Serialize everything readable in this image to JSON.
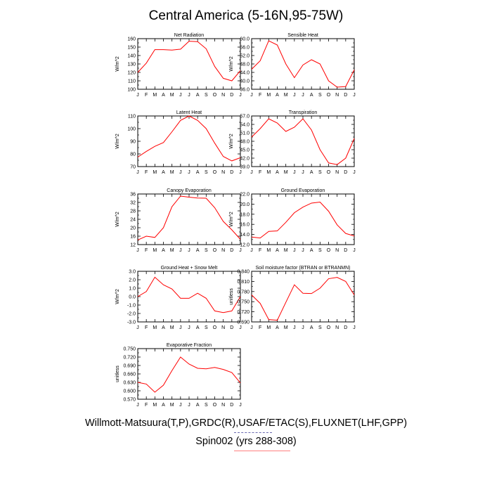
{
  "title": "Central America (5-16N,95-75W)",
  "footer": {
    "line1": "Willmott-Matsuura(T,P),GRDC(R),USAF/ETAC(S),FLUXNET(LHF,GPP)",
    "line2": "Spin002 (yrs 288-308)"
  },
  "colors": {
    "line": "#ff0000",
    "axis": "#000000",
    "deco_line": "#ff8080"
  },
  "months": [
    "J",
    "F",
    "M",
    "A",
    "M",
    "J",
    "J",
    "A",
    "S",
    "O",
    "N",
    "D",
    "J"
  ],
  "chart_data": [
    {
      "type": "line",
      "title": "Net Radiation",
      "ylabel": "W/m^2",
      "ylim": [
        100,
        160
      ],
      "yticks": [
        "160",
        "150",
        "140",
        "130",
        "120",
        "110",
        "100"
      ],
      "values": [
        120,
        131,
        147,
        147,
        146.5,
        147.5,
        157,
        156.5,
        148,
        127,
        113,
        110,
        122
      ]
    },
    {
      "type": "line",
      "title": "Sensible Heat",
      "ylabel": "W/m^2",
      "ylim": [
        36,
        60
      ],
      "yticks": [
        "60.0",
        "56.0",
        "52.0",
        "48.0",
        "44.0",
        "40.0",
        "36.0"
      ],
      "values": [
        45.5,
        49.5,
        59,
        57,
        48,
        41.5,
        47.5,
        50,
        48,
        40,
        37,
        37.3,
        45.2
      ]
    },
    {
      "type": "line",
      "title": "Latent Heat",
      "ylabel": "W/m^2",
      "ylim": [
        70,
        110
      ],
      "yticks": [
        "110",
        "100",
        "90",
        "80",
        "70"
      ],
      "values": [
        77.5,
        82,
        86,
        89,
        97.5,
        106.5,
        110,
        106.5,
        100,
        88.5,
        78,
        74.5,
        77
      ]
    },
    {
      "type": "line",
      "title": "Transpiration",
      "ylabel": "W/m^2",
      "ylim": [
        39,
        57
      ],
      "yticks": [
        "57.0",
        "54.0",
        "51.0",
        "48.0",
        "45.0",
        "42.0",
        "39.0"
      ],
      "values": [
        49.5,
        52.5,
        56,
        54.5,
        51.5,
        53,
        56,
        52,
        45,
        40.3,
        39.7,
        42,
        49
      ]
    },
    {
      "type": "line",
      "title": "Canopy Evaporation",
      "ylabel": "W/m^2",
      "ylim": [
        12,
        36
      ],
      "yticks": [
        "36",
        "32",
        "28",
        "24",
        "20",
        "16",
        "12"
      ],
      "values": [
        14.2,
        16,
        15.4,
        20,
        30,
        35,
        34.5,
        34.1,
        34,
        29.5,
        23,
        19,
        14.5
      ]
    },
    {
      "type": "line",
      "title": "Ground Evaporation",
      "ylabel": "W/m^2",
      "ylim": [
        12,
        22
      ],
      "yticks": [
        "22.0",
        "20.0",
        "18.0",
        "16.0",
        "14.0",
        "12.0"
      ],
      "values": [
        13.5,
        13.3,
        14.6,
        14.7,
        16.4,
        18.3,
        19.4,
        20.2,
        20.4,
        18.6,
        15.9,
        14.2,
        13.7
      ]
    },
    {
      "type": "line",
      "title": "Ground Heat + Snow Melt",
      "ylabel": "W/m^2",
      "ylim": [
        -3,
        3
      ],
      "yticks": [
        "3.0",
        "2.0",
        "1.0",
        "0.0",
        "-1.0",
        "-2.0",
        "-3.0"
      ],
      "values": [
        0,
        0.6,
        2.3,
        1.4,
        0.9,
        -0.2,
        -0.2,
        0.4,
        -0.2,
        -1.7,
        -1.9,
        -1.7,
        0
      ]
    },
    {
      "type": "line",
      "title": "Soil moisture factor (BTRAN or BTRANMN)",
      "ylabel": "unitless",
      "ylim": [
        0.69,
        0.84
      ],
      "yticks": [
        "0.840",
        "0.810",
        "0.780",
        "0.750",
        "0.720",
        "0.690"
      ],
      "values": [
        0.77,
        0.745,
        0.697,
        0.695,
        0.748,
        0.8,
        0.775,
        0.774,
        0.79,
        0.818,
        0.822,
        0.81,
        0.77
      ]
    },
    {
      "type": "line",
      "title": "Evaporative Fraction",
      "ylabel": "unitless",
      "ylim": [
        0.57,
        0.75
      ],
      "yticks": [
        "0.750",
        "0.720",
        "0.690",
        "0.660",
        "0.630",
        "0.600",
        "0.570"
      ],
      "values": [
        0.63,
        0.624,
        0.595,
        0.62,
        0.672,
        0.72,
        0.695,
        0.68,
        0.678,
        0.683,
        0.676,
        0.665,
        0.628
      ]
    }
  ]
}
